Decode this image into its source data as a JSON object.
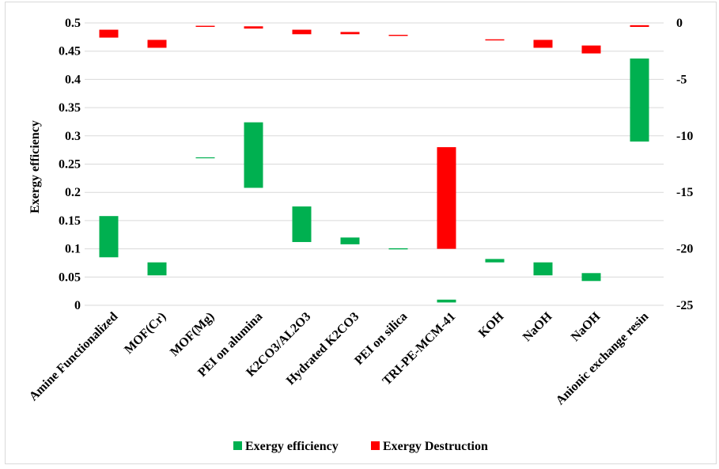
{
  "chart_data": {
    "type": "bar",
    "subtype": "floating-range",
    "ylabel": "Exergy efficiency",
    "ylim_left": [
      0,
      0.5
    ],
    "yticks_left": [
      "0",
      "0.05",
      "0.1",
      "0.15",
      "0.2",
      "0.25",
      "0.3",
      "0.35",
      "0.4",
      "0.45",
      "0.5"
    ],
    "ylim_right": [
      -25,
      0
    ],
    "yticks_right": [
      "0",
      "-5",
      "-10",
      "-15",
      "-20",
      "-25"
    ],
    "grid": true,
    "legend_position": "bottom",
    "categories": [
      "Amine Functionalized",
      "MOF(Cr)",
      "MOF(Mg)",
      "PEI on alumina",
      "K2CO3/AL2O3",
      "Hydrated K2CO3",
      "PEI on silica",
      "TRI-PE-MCM-41",
      "KOH",
      "NaOH",
      "NaOH",
      "Anionic exchange resin"
    ],
    "series": [
      {
        "name": "Exergy efficiency",
        "color": "#00b050",
        "axis": "left",
        "ranges": [
          [
            0.085,
            0.158
          ],
          [
            0.053,
            0.076
          ],
          [
            0.261,
            0.262
          ],
          [
            0.208,
            0.324
          ],
          [
            0.112,
            0.175
          ],
          [
            0.108,
            0.12
          ],
          [
            0.099,
            0.101
          ],
          [
            0.005,
            0.01
          ],
          [
            0.076,
            0.082
          ],
          [
            0.053,
            0.076
          ],
          [
            0.043,
            0.057
          ],
          [
            0.29,
            0.437
          ]
        ]
      },
      {
        "name": "Exergy Destruction",
        "color": "#ff0000",
        "axis": "right",
        "ranges": [
          [
            -1.3,
            -0.6
          ],
          [
            -2.2,
            -1.5
          ],
          [
            -0.35,
            -0.25
          ],
          [
            -0.5,
            -0.3
          ],
          [
            -1.0,
            -0.6
          ],
          [
            -1.0,
            -0.8
          ],
          [
            -1.15,
            -1.05
          ],
          [
            -20.0,
            -11.0
          ],
          [
            -1.55,
            -1.45
          ],
          [
            -2.2,
            -1.5
          ],
          [
            -2.7,
            -2.0
          ],
          [
            -0.35,
            -0.2
          ]
        ]
      }
    ]
  }
}
